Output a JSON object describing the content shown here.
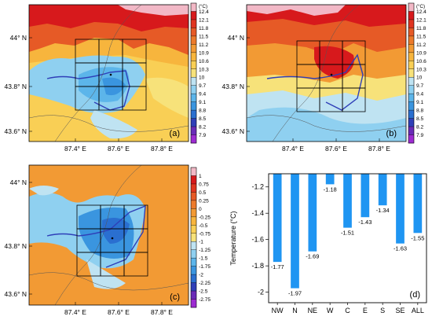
{
  "maps": [
    {
      "panel_label": "(a)",
      "colorbar_unit": "(°C)",
      "colorbar_ticks": [
        "12.4",
        "12.1",
        "11.8",
        "11.5",
        "11.2",
        "10.9",
        "10.6",
        "10.3",
        "10",
        "9.7",
        "9.4",
        "9.1",
        "8.8",
        "8.5",
        "8.2",
        "7.9"
      ],
      "colorbar_colors": [
        "#f2b8c6",
        "#d7191c",
        "#e03520",
        "#e65a26",
        "#ec7a2b",
        "#f29a34",
        "#f7b53d",
        "#f9cf55",
        "#f7e27a",
        "#bfe3f2",
        "#8fd0f0",
        "#5cb5ea",
        "#3a95df",
        "#2a6fd0",
        "#2f3fb8",
        "#6a2bb8",
        "#9d2bd2"
      ],
      "y_ticks": [
        "44° N",
        "43.8° N",
        "43.6° N"
      ],
      "x_ticks": [
        "87.4° E",
        "87.6° E",
        "87.8° E"
      ]
    },
    {
      "panel_label": "(b)",
      "colorbar_unit": "(°C)",
      "colorbar_ticks": [
        "12.4",
        "12.1",
        "11.8",
        "11.5",
        "11.2",
        "10.9",
        "10.6",
        "10.3",
        "10",
        "9.7",
        "9.4",
        "9.1",
        "8.8",
        "8.5",
        "8.2",
        "7.9"
      ],
      "colorbar_colors": [
        "#f2b8c6",
        "#d7191c",
        "#e03520",
        "#e65a26",
        "#ec7a2b",
        "#f29a34",
        "#f7b53d",
        "#f9cf55",
        "#f7e27a",
        "#bfe3f2",
        "#8fd0f0",
        "#5cb5ea",
        "#3a95df",
        "#2a6fd0",
        "#2f3fb8",
        "#6a2bb8",
        "#9d2bd2"
      ],
      "y_ticks": [
        "44° N",
        "43.8° N",
        "43.6° N"
      ],
      "x_ticks": [
        "87.4° E",
        "87.6° E",
        "87.8° E"
      ]
    },
    {
      "panel_label": "(c)",
      "colorbar_unit": "",
      "colorbar_ticks": [
        "1",
        "0.75",
        "0.5",
        "0.25",
        "0",
        "-0.25",
        "-0.5",
        "-0.75",
        "-1",
        "-1.25",
        "-1.5",
        "-1.75",
        "-2",
        "-2.25",
        "-2.5",
        "-2.75"
      ],
      "colorbar_colors": [
        "#f2b8c6",
        "#d7191c",
        "#e03520",
        "#e65a26",
        "#ec7a2b",
        "#f29a34",
        "#f7b53d",
        "#f9cf55",
        "#f7e27a",
        "#bfe3f2",
        "#8fd0f0",
        "#5cb5ea",
        "#3a95df",
        "#2a6fd0",
        "#2f3fb8",
        "#6a2bb8",
        "#9d2bd2"
      ],
      "y_ticks": [
        "44° N",
        "43.8° N",
        "43.6° N"
      ],
      "x_ticks": [
        "87.4° E",
        "87.6° E",
        "87.8° E"
      ]
    }
  ],
  "chart_data": {
    "type": "bar",
    "panel_label": "(d)",
    "categories": [
      "NW",
      "N",
      "NE",
      "W",
      "C",
      "E",
      "S",
      "SE",
      "ALL"
    ],
    "values": [
      -1.77,
      -1.97,
      -1.69,
      -1.18,
      -1.51,
      -1.43,
      -1.34,
      -1.63,
      -1.55
    ],
    "value_labels": [
      "-1.77",
      "-1.97",
      "-1.69",
      "-1.18",
      "-1.51",
      "-1.43",
      "-1.34",
      "-1.63",
      "-1.55"
    ],
    "ylabel": "Temperature (°C)",
    "ylim": [
      -2.08,
      -1.1
    ],
    "yticks": [
      -1.2,
      -1.4,
      -1.6,
      -1.8,
      -2
    ],
    "ytick_labels": [
      "-1.2",
      "-1.4",
      "-1.6",
      "-1.8",
      "-2"
    ],
    "bar_color": "#1f95f2",
    "grid": false
  }
}
